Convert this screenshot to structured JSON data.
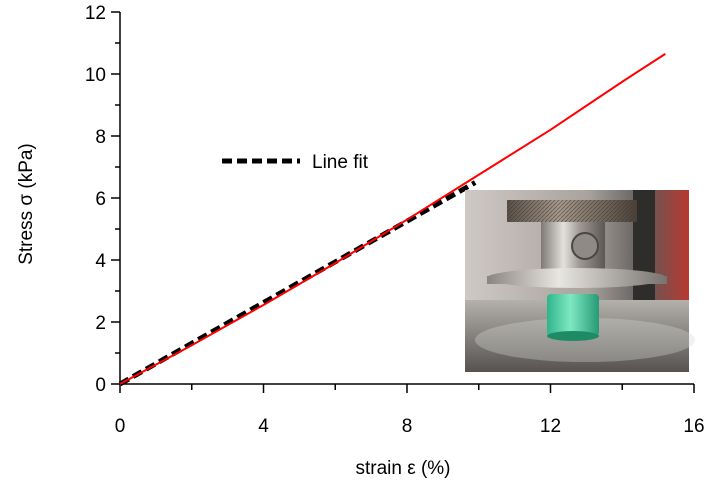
{
  "chart_data": {
    "type": "line",
    "xlabel": "strain  ε  (%)",
    "ylabel": "Stress  σ  (kPa)",
    "xlim": [
      0,
      16
    ],
    "ylim": [
      0,
      12
    ],
    "xticks": [
      0,
      4,
      8,
      12,
      16
    ],
    "yticks": [
      0,
      2,
      4,
      6,
      8,
      10,
      12
    ],
    "grid": false,
    "legend_position": "upper-left",
    "series": [
      {
        "style": "solid",
        "color": "#ff0000",
        "x": [
          0,
          2,
          4,
          6,
          8,
          10,
          12,
          14,
          15.2
        ],
        "y": [
          0,
          1.25,
          2.55,
          3.9,
          5.3,
          6.75,
          8.2,
          9.75,
          10.65
        ]
      },
      {
        "name": "Line fit",
        "style": "dashed",
        "color": "#000000",
        "x": [
          0,
          9.9
        ],
        "y": [
          0,
          6.5
        ]
      }
    ],
    "inset": {
      "description_icon": "compression-test-photo-icon"
    }
  }
}
